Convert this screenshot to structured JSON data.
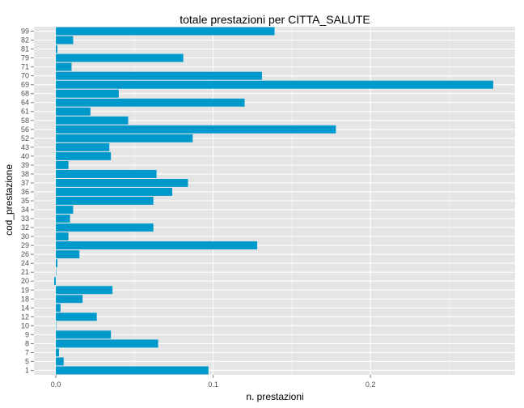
{
  "chart_data": {
    "type": "bar",
    "orientation": "horizontal",
    "title": "totale prestazioni per CITTA_SALUTE",
    "xlabel": "n. prestazioni",
    "ylabel": "cod_prestazione",
    "categories": [
      "1",
      "5",
      "7",
      "8",
      "9",
      "10",
      "12",
      "14",
      "18",
      "19",
      "20",
      "21",
      "24",
      "26",
      "29",
      "30",
      "32",
      "33",
      "34",
      "35",
      "36",
      "37",
      "38",
      "39",
      "40",
      "43",
      "52",
      "56",
      "58",
      "61",
      "64",
      "68",
      "69",
      "70",
      "71",
      "79",
      "81",
      "82",
      "99"
    ],
    "values": [
      0.097,
      0.005,
      0.002,
      0.065,
      0.035,
      0,
      0.026,
      0.003,
      0.017,
      0.036,
      -0.001,
      0,
      0.001,
      0.015,
      0.128,
      0.008,
      0.062,
      0.009,
      0.011,
      0.062,
      0.074,
      0.084,
      0.064,
      0.008,
      0.035,
      0.034,
      0.087,
      0.178,
      0.046,
      0.022,
      0.12,
      0.04,
      0.278,
      0.131,
      0.01,
      0.081,
      0.001,
      0.011,
      0.139
    ],
    "xticks": [
      "0.0",
      "0.1",
      "0.2"
    ],
    "xlim": [
      -0.0139,
      0.2919
    ],
    "bar_color": "#0099CC",
    "panel_background": "#E5E5E5",
    "grid": true,
    "legend": "none"
  }
}
